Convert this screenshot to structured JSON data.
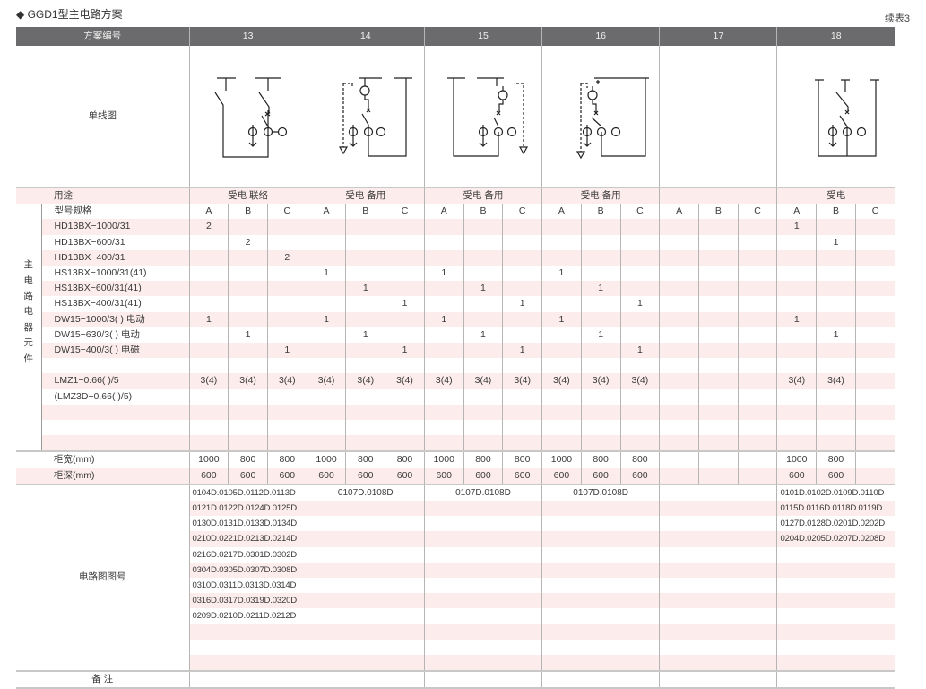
{
  "title": "◆ GGD1型主电路方案",
  "continued": "续表3",
  "header": {
    "label": "方案编号",
    "schemes": [
      "13",
      "14",
      "15",
      "16",
      "17",
      "18"
    ]
  },
  "diagram_label": "单线图",
  "usage": {
    "label": "用途",
    "values": [
      "受电 联络",
      "受电 备用",
      "受电 备用",
      "受电 备用",
      "",
      "受电"
    ]
  },
  "group_label": [
    "主",
    "电",
    "路",
    "电",
    "器",
    "元",
    "件"
  ],
  "model_label": "型号规格",
  "subcols": [
    "A",
    "B",
    "C",
    "A",
    "B",
    "C",
    "A",
    "B",
    "C",
    "A",
    "B",
    "C",
    "A",
    "B",
    "C",
    "A",
    "B",
    "C"
  ],
  "components": [
    {
      "name": "HD13BX−1000/31",
      "values": [
        "2",
        "",
        "",
        "",
        "",
        "",
        "",
        "",
        "",
        "",
        "",
        "",
        "",
        "",
        "",
        "1",
        "",
        ""
      ]
    },
    {
      "name": "HD13BX−600/31",
      "values": [
        "",
        "2",
        "",
        "",
        "",
        "",
        "",
        "",
        "",
        "",
        "",
        "",
        "",
        "",
        "",
        "",
        "1",
        ""
      ]
    },
    {
      "name": "HD13BX−400/31",
      "values": [
        "",
        "",
        "2",
        "",
        "",
        "",
        "",
        "",
        "",
        "",
        "",
        "",
        "",
        "",
        "",
        "",
        "",
        ""
      ]
    },
    {
      "name": "HS13BX−1000/31(41)",
      "values": [
        "",
        "",
        "",
        "1",
        "",
        "",
        "1",
        "",
        "",
        "1",
        "",
        "",
        "",
        "",
        "",
        "",
        "",
        ""
      ]
    },
    {
      "name": "HS13BX−600/31(41)",
      "values": [
        "",
        "",
        "",
        "",
        "1",
        "",
        "",
        "1",
        "",
        "",
        "1",
        "",
        "",
        "",
        "",
        "",
        "",
        ""
      ]
    },
    {
      "name": "HS13BX−400/31(41)",
      "values": [
        "",
        "",
        "",
        "",
        "",
        "1",
        "",
        "",
        "1",
        "",
        "",
        "1",
        "",
        "",
        "",
        "",
        "",
        ""
      ]
    },
    {
      "name": "DW15−1000/3(  )  电动",
      "values": [
        "1",
        "",
        "",
        "1",
        "",
        "",
        "1",
        "",
        "",
        "1",
        "",
        "",
        "",
        "",
        "",
        "1",
        "",
        ""
      ]
    },
    {
      "name": "DW15−630/3(  )  电动",
      "values": [
        "",
        "1",
        "",
        "",
        "1",
        "",
        "",
        "1",
        "",
        "",
        "1",
        "",
        "",
        "",
        "",
        "",
        "1",
        ""
      ]
    },
    {
      "name": "DW15−400/3(  )  电磁",
      "values": [
        "",
        "",
        "1",
        "",
        "",
        "1",
        "",
        "",
        "1",
        "",
        "",
        "1",
        "",
        "",
        "",
        "",
        "",
        ""
      ]
    },
    {
      "name": "",
      "values": [
        "",
        "",
        "",
        "",
        "",
        "",
        "",
        "",
        "",
        "",
        "",
        "",
        "",
        "",
        "",
        "",
        "",
        ""
      ]
    },
    {
      "name": "LMZ1−0.66(  )/5",
      "values": [
        "3(4)",
        "3(4)",
        "3(4)",
        "3(4)",
        "3(4)",
        "3(4)",
        "3(4)",
        "3(4)",
        "3(4)",
        "3(4)",
        "3(4)",
        "3(4)",
        "",
        "",
        "",
        "3(4)",
        "3(4)",
        ""
      ]
    },
    {
      "name": "(LMZ3D−0.66(  )/5)",
      "values": [
        "",
        "",
        "",
        "",
        "",
        "",
        "",
        "",
        "",
        "",
        "",
        "",
        "",
        "",
        "",
        "",
        "",
        ""
      ]
    },
    {
      "name": "",
      "values": [
        "",
        "",
        "",
        "",
        "",
        "",
        "",
        "",
        "",
        "",
        "",
        "",
        "",
        "",
        "",
        "",
        "",
        ""
      ]
    },
    {
      "name": "",
      "values": [
        "",
        "",
        "",
        "",
        "",
        "",
        "",
        "",
        "",
        "",
        "",
        "",
        "",
        "",
        "",
        "",
        "",
        ""
      ]
    },
    {
      "name": "",
      "values": [
        "",
        "",
        "",
        "",
        "",
        "",
        "",
        "",
        "",
        "",
        "",
        "",
        "",
        "",
        "",
        "",
        "",
        ""
      ]
    }
  ],
  "width": {
    "label": "柜宽(mm)",
    "values": [
      "1000",
      "800",
      "800",
      "1000",
      "800",
      "800",
      "1000",
      "800",
      "800",
      "1000",
      "800",
      "800",
      "",
      "",
      "",
      "1000",
      "800",
      ""
    ]
  },
  "depth": {
    "label": "柜深(mm)",
    "values": [
      "600",
      "600",
      "600",
      "600",
      "600",
      "600",
      "600",
      "600",
      "600",
      "600",
      "600",
      "600",
      "",
      "",
      "",
      "600",
      "600",
      ""
    ]
  },
  "drawings": {
    "label": "电路图图号",
    "schemes": [
      [
        "0104D.0105D.0112D.0113D",
        "0121D.0122D.0124D.0125D",
        "0130D.0131D.0133D.0134D",
        "0210D.0221D.0213D.0214D",
        "0216D.0217D.0301D.0302D",
        "0304D.0305D.0307D.0308D",
        "0310D.0311D.0313D.0314D",
        "0316D.0317D.0319D.0320D",
        "0209D.0210D.0211D.0212D"
      ],
      [
        "0107D.0108D"
      ],
      [
        "0107D.0108D"
      ],
      [
        "0107D.0108D"
      ],
      [],
      [
        "0101D.0102D.0109D.0110D",
        "0115D.0116D.0118D.0119D",
        "0127D.0128D.0201D.0202D",
        "0204D.0205D.0207D.0208D"
      ]
    ]
  },
  "remarks": {
    "label": "备 注"
  },
  "colors": {
    "header_bg": "#6b6b6d",
    "stripe": "#fcecec",
    "grid": "#b5b5b5"
  }
}
